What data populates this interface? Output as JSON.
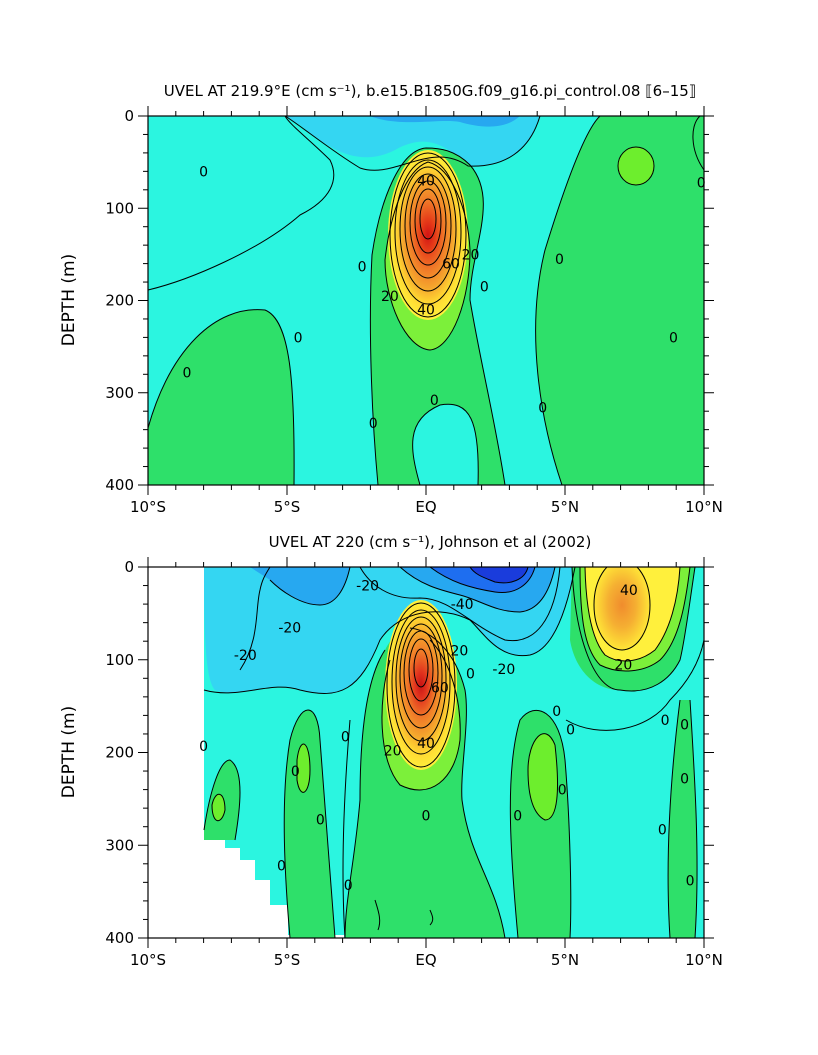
{
  "chart_data": [
    {
      "type": "contour",
      "title": "UVEL AT 219.9°E (cm s⁻¹), b.e15.B1850G.f09_g16.pi_control.08 ⟦6–15⟧",
      "xlabel": "",
      "ylabel": "DEPTH (m)",
      "x_tick_labels": [
        "10°S",
        "5°S",
        "EQ",
        "5°N",
        "10°N"
      ],
      "x_tick_values": [
        -10,
        -5,
        0,
        5,
        10
      ],
      "y_tick_labels": [
        "0",
        "100",
        "200",
        "300",
        "400"
      ],
      "y_tick_values": [
        0,
        100,
        200,
        300,
        400
      ],
      "xlim": [
        -10,
        10
      ],
      "ylim": [
        400,
        0
      ],
      "contour_interval": 10,
      "core": {
        "lat": 0,
        "depth": 125,
        "max": 90
      },
      "contour_labels": [
        {
          "text": "40",
          "lat": 0.0,
          "depth": 70
        },
        {
          "text": "60",
          "lat": 0.9,
          "depth": 160
        },
        {
          "text": "20",
          "lat": 1.6,
          "depth": 150
        },
        {
          "text": "20",
          "lat": -1.3,
          "depth": 195
        },
        {
          "text": "40",
          "lat": 0.0,
          "depth": 210
        },
        {
          "text": "0",
          "lat": 2.1,
          "depth": 185
        },
        {
          "text": "0",
          "lat": -2.3,
          "depth": 163
        },
        {
          "text": "0",
          "lat": -4.6,
          "depth": 240
        },
        {
          "text": "0",
          "lat": -8.6,
          "depth": 278
        },
        {
          "text": "0",
          "lat": -1.9,
          "depth": 333
        },
        {
          "text": "0",
          "lat": 0.3,
          "depth": 308
        },
        {
          "text": "0",
          "lat": 4.2,
          "depth": 316
        },
        {
          "text": "0",
          "lat": 4.8,
          "depth": 155
        },
        {
          "text": "0",
          "lat": 8.9,
          "depth": 240
        },
        {
          "text": "0",
          "lat": 9.9,
          "depth": 72
        },
        {
          "text": "0",
          "lat": -8.0,
          "depth": 60
        }
      ]
    },
    {
      "type": "contour",
      "title": "UVEL AT 220 (cm s⁻¹), Johnson et al (2002)",
      "xlabel": "",
      "ylabel": "DEPTH (m)",
      "x_tick_labels": [
        "10°S",
        "5°S",
        "EQ",
        "5°N",
        "10°N"
      ],
      "x_tick_values": [
        -10,
        -5,
        0,
        5,
        10
      ],
      "y_tick_labels": [
        "0",
        "100",
        "200",
        "300",
        "400"
      ],
      "y_tick_values": [
        0,
        100,
        200,
        300,
        400
      ],
      "xlim": [
        -10,
        10
      ],
      "ylim": [
        400,
        0
      ],
      "contour_interval": 10,
      "core": {
        "lat": -0.2,
        "depth": 110,
        "max": 100
      },
      "contour_labels": [
        {
          "text": "-20",
          "lat": -2.1,
          "depth": 20
        },
        {
          "text": "-40",
          "lat": 1.3,
          "depth": 40
        },
        {
          "text": "-20",
          "lat": -4.9,
          "depth": 65
        },
        {
          "text": "-20",
          "lat": -6.5,
          "depth": 95
        },
        {
          "text": "-20",
          "lat": 2.8,
          "depth": 110
        },
        {
          "text": "20",
          "lat": 1.2,
          "depth": 90
        },
        {
          "text": "60",
          "lat": 0.5,
          "depth": 130
        },
        {
          "text": "20",
          "lat": -1.2,
          "depth": 198
        },
        {
          "text": "40",
          "lat": 0.0,
          "depth": 190
        },
        {
          "text": "40",
          "lat": 7.3,
          "depth": 25
        },
        {
          "text": "20",
          "lat": 7.1,
          "depth": 105
        },
        {
          "text": "0",
          "lat": 1.6,
          "depth": 115
        },
        {
          "text": "0",
          "lat": 4.7,
          "depth": 155
        },
        {
          "text": "0",
          "lat": 5.2,
          "depth": 175
        },
        {
          "text": "0",
          "lat": 4.9,
          "depth": 240
        },
        {
          "text": "0",
          "lat": 3.3,
          "depth": 268
        },
        {
          "text": "0",
          "lat": 0.0,
          "depth": 268
        },
        {
          "text": "0",
          "lat": -2.9,
          "depth": 183
        },
        {
          "text": "0",
          "lat": -4.7,
          "depth": 220
        },
        {
          "text": "0",
          "lat": -3.8,
          "depth": 272
        },
        {
          "text": "0",
          "lat": -5.2,
          "depth": 322
        },
        {
          "text": "0",
          "lat": -2.8,
          "depth": 343
        },
        {
          "text": "0",
          "lat": -8.0,
          "depth": 193
        },
        {
          "text": "0",
          "lat": 8.6,
          "depth": 165
        },
        {
          "text": "0",
          "lat": 9.3,
          "depth": 170
        },
        {
          "text": "0",
          "lat": 9.3,
          "depth": 228
        },
        {
          "text": "0",
          "lat": 8.5,
          "depth": 283
        },
        {
          "text": "0",
          "lat": 9.5,
          "depth": 338
        }
      ]
    }
  ]
}
